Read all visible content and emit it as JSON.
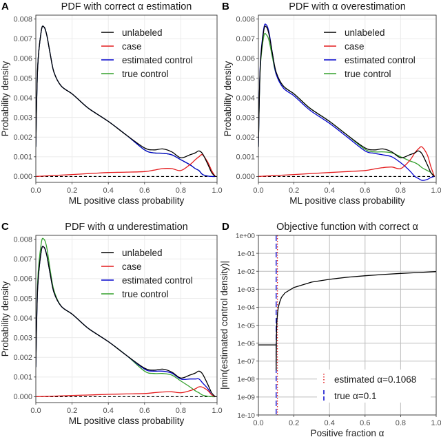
{
  "colors": {
    "unlabeled": "#000000",
    "case": "#e41a1c",
    "estimated_control": "#0000cc",
    "true_control": "#33a02c"
  },
  "chart_data": [
    {
      "panel": "A",
      "type": "line",
      "title": "PDF with correct α estimation",
      "xlabel": "ML positive class probability",
      "ylabel": "Probability density",
      "xlim": [
        0,
        1
      ],
      "ylim": [
        -0.0003,
        0.0082
      ],
      "xticks": [
        "0.0",
        "0.2",
        "0.4",
        "0.6",
        "0.8",
        "1.0"
      ],
      "yticks": [
        "0.000",
        "0.001",
        "0.002",
        "0.003",
        "0.004",
        "0.005",
        "0.006",
        "0.007",
        "0.008"
      ],
      "legend": [
        "unlabeled",
        "case",
        "estimated control",
        "true control"
      ],
      "series": [
        {
          "name": "unlabeled",
          "x": [
            0,
            0.01,
            0.03,
            0.045,
            0.06,
            0.08,
            0.1,
            0.14,
            0.2,
            0.26,
            0.3,
            0.4,
            0.5,
            0.6,
            0.65,
            0.7,
            0.75,
            0.8,
            0.85,
            0.88,
            0.9,
            0.92,
            0.95,
            0.97,
            0.99
          ],
          "y": [
            0.0015,
            0.0055,
            0.0074,
            0.0076,
            0.0072,
            0.0062,
            0.0053,
            0.0046,
            0.0042,
            0.0037,
            0.0034,
            0.0028,
            0.0021,
            0.00145,
            0.00135,
            0.0014,
            0.00125,
            0.00095,
            0.0011,
            0.0012,
            0.0013,
            0.00115,
            0.0006,
            0.0002,
            0
          ]
        },
        {
          "name": "case",
          "x": [
            0,
            0.1,
            0.2,
            0.3,
            0.4,
            0.5,
            0.6,
            0.65,
            0.7,
            0.75,
            0.8,
            0.85,
            0.88,
            0.9,
            0.92,
            0.95,
            0.97,
            0.99
          ],
          "y": [
            0,
            5e-05,
            0.0001,
            0.00015,
            0.0002,
            0.00022,
            0.00025,
            0.00032,
            0.0004,
            0.0004,
            0.0003,
            0.0006,
            0.00085,
            0.001,
            0.0011,
            0.0007,
            0.0003,
            0
          ]
        },
        {
          "name": "estimated control",
          "x": [
            0,
            0.01,
            0.03,
            0.045,
            0.06,
            0.08,
            0.1,
            0.14,
            0.2,
            0.26,
            0.3,
            0.4,
            0.5,
            0.6,
            0.65,
            0.7,
            0.75,
            0.8,
            0.85,
            0.88,
            0.9,
            0.92,
            0.95,
            0.97,
            0.99
          ],
          "y": [
            0.0015,
            0.0055,
            0.0074,
            0.0076,
            0.0072,
            0.0062,
            0.0053,
            0.0046,
            0.0042,
            0.0037,
            0.0034,
            0.0028,
            0.0021,
            0.00135,
            0.0012,
            0.00118,
            0.0011,
            0.00085,
            0.0006,
            0.0004,
            0.0003,
            0.0001,
            2e-05,
            0,
            0
          ]
        },
        {
          "name": "true control",
          "x": [
            0,
            0.01,
            0.03,
            0.045,
            0.06,
            0.08,
            0.1,
            0.14,
            0.2,
            0.26,
            0.3,
            0.4,
            0.5,
            0.6,
            0.65,
            0.7,
            0.75,
            0.8,
            0.85,
            0.88,
            0.9,
            0.92,
            0.95,
            0.97,
            0.99
          ],
          "y": [
            0.0015,
            0.0055,
            0.0074,
            0.0076,
            0.0072,
            0.0062,
            0.0053,
            0.0046,
            0.0042,
            0.0037,
            0.0034,
            0.0028,
            0.0021,
            0.00135,
            0.0012,
            0.00118,
            0.0011,
            0.00085,
            0.0006,
            0.0004,
            0.0003,
            0.0001,
            2e-05,
            0,
            0
          ]
        }
      ]
    },
    {
      "panel": "B",
      "type": "line",
      "title": "PDF with α overestimation",
      "xlabel": "ML positive class probability",
      "ylabel": "Probability density",
      "xlim": [
        0,
        1
      ],
      "ylim": [
        -0.0003,
        0.0082
      ],
      "xticks": [
        "0.0",
        "0.2",
        "0.4",
        "0.6",
        "0.8",
        "1.0"
      ],
      "yticks": [
        "0.000",
        "0.001",
        "0.002",
        "0.003",
        "0.004",
        "0.005",
        "0.006",
        "0.007",
        "0.008"
      ],
      "legend": [
        "unlabeled",
        "case",
        "estimated control",
        "true control"
      ],
      "series": [
        {
          "name": "unlabeled",
          "x": [
            0,
            0.01,
            0.03,
            0.045,
            0.06,
            0.08,
            0.1,
            0.14,
            0.2,
            0.26,
            0.3,
            0.4,
            0.5,
            0.6,
            0.65,
            0.7,
            0.75,
            0.8,
            0.85,
            0.88,
            0.9,
            0.92,
            0.95,
            0.97,
            0.99
          ],
          "y": [
            0.0015,
            0.0055,
            0.0074,
            0.0076,
            0.0072,
            0.0062,
            0.0053,
            0.0046,
            0.0042,
            0.0037,
            0.0034,
            0.0028,
            0.0021,
            0.00145,
            0.00135,
            0.0014,
            0.00125,
            0.00095,
            0.0011,
            0.0012,
            0.0013,
            0.00115,
            0.0006,
            0.0002,
            0
          ]
        },
        {
          "name": "case",
          "x": [
            0,
            0.1,
            0.2,
            0.3,
            0.4,
            0.5,
            0.6,
            0.65,
            0.7,
            0.75,
            0.8,
            0.85,
            0.88,
            0.9,
            0.92,
            0.95,
            0.97,
            0.99
          ],
          "y": [
            0,
            5e-05,
            0.0001,
            0.00015,
            0.0002,
            0.00025,
            0.0003,
            0.00038,
            0.00045,
            0.00048,
            0.0004,
            0.0008,
            0.0012,
            0.0014,
            0.0015,
            0.0011,
            0.0005,
            0
          ]
        },
        {
          "name": "estimated control",
          "x": [
            0,
            0.01,
            0.03,
            0.045,
            0.06,
            0.08,
            0.1,
            0.14,
            0.2,
            0.26,
            0.3,
            0.4,
            0.5,
            0.6,
            0.65,
            0.7,
            0.75,
            0.8,
            0.85,
            0.88,
            0.9,
            0.92,
            0.95,
            0.97,
            0.99
          ],
          "y": [
            0.0015,
            0.0056,
            0.0075,
            0.0077,
            0.0073,
            0.0062,
            0.0052,
            0.0045,
            0.0041,
            0.0036,
            0.0033,
            0.0027,
            0.002,
            0.0013,
            0.00118,
            0.0011,
            0.001,
            0.0007,
            0.0003,
            0,
            -0.0001,
            -0.0002,
            -0.00015,
            -5e-05,
            0
          ]
        },
        {
          "name": "true control",
          "x": [
            0,
            0.01,
            0.03,
            0.045,
            0.06,
            0.08,
            0.1,
            0.14,
            0.2,
            0.26,
            0.3,
            0.4,
            0.5,
            0.6,
            0.65,
            0.7,
            0.75,
            0.8,
            0.85,
            0.88,
            0.9,
            0.92,
            0.95,
            0.97,
            0.99
          ],
          "y": [
            0.0015,
            0.0054,
            0.0071,
            0.0072,
            0.0069,
            0.006,
            0.0052,
            0.0046,
            0.0042,
            0.0037,
            0.0034,
            0.0028,
            0.0021,
            0.00138,
            0.00125,
            0.00125,
            0.0012,
            0.001,
            0.0008,
            0.0007,
            0.0006,
            0.00045,
            0.0003,
            0.0002,
            0
          ]
        }
      ]
    },
    {
      "panel": "C",
      "type": "line",
      "title": "PDF with α underestimation",
      "xlabel": "ML positive class probability",
      "ylabel": "Probability density",
      "xlim": [
        0,
        1
      ],
      "ylim": [
        -0.0003,
        0.0082
      ],
      "xticks": [
        "0.0",
        "0.2",
        "0.4",
        "0.6",
        "0.8",
        "1.0"
      ],
      "yticks": [
        "0.000",
        "0.001",
        "0.002",
        "0.003",
        "0.004",
        "0.005",
        "0.006",
        "0.007",
        "0.008"
      ],
      "legend": [
        "unlabeled",
        "case",
        "estimated control",
        "true control"
      ],
      "series": [
        {
          "name": "unlabeled",
          "x": [
            0,
            0.01,
            0.03,
            0.045,
            0.06,
            0.08,
            0.1,
            0.14,
            0.2,
            0.26,
            0.3,
            0.4,
            0.5,
            0.6,
            0.65,
            0.7,
            0.75,
            0.8,
            0.85,
            0.88,
            0.9,
            0.92,
            0.95,
            0.97,
            0.99
          ],
          "y": [
            0.0015,
            0.0055,
            0.0074,
            0.0076,
            0.0072,
            0.0062,
            0.0053,
            0.0046,
            0.0042,
            0.0037,
            0.0034,
            0.0028,
            0.0021,
            0.00145,
            0.00135,
            0.0014,
            0.00125,
            0.00095,
            0.0011,
            0.0012,
            0.0013,
            0.00115,
            0.0006,
            0.0002,
            0
          ]
        },
        {
          "name": "case",
          "x": [
            0,
            0.1,
            0.2,
            0.3,
            0.4,
            0.5,
            0.6,
            0.65,
            0.7,
            0.75,
            0.8,
            0.85,
            0.88,
            0.9,
            0.92,
            0.95,
            0.97,
            0.99
          ],
          "y": [
            0,
            3e-05,
            6e-05,
            9e-05,
            0.00012,
            0.00014,
            0.00016,
            0.0002,
            0.00024,
            0.00025,
            0.0002,
            0.0003,
            0.0004,
            0.0005,
            0.00048,
            0.0003,
            0.0001,
            0
          ]
        },
        {
          "name": "estimated control",
          "x": [
            0,
            0.01,
            0.03,
            0.045,
            0.06,
            0.08,
            0.1,
            0.14,
            0.2,
            0.26,
            0.3,
            0.4,
            0.5,
            0.6,
            0.65,
            0.7,
            0.75,
            0.8,
            0.85,
            0.88,
            0.9,
            0.92,
            0.95,
            0.97,
            0.99
          ],
          "y": [
            0.0015,
            0.0055,
            0.0074,
            0.0076,
            0.0072,
            0.0062,
            0.0053,
            0.0046,
            0.0042,
            0.0037,
            0.0034,
            0.0028,
            0.0021,
            0.0014,
            0.0013,
            0.0013,
            0.0012,
            0.0009,
            0.0009,
            0.0009,
            0.0009,
            0.0007,
            0.0004,
            0.0001,
            0
          ]
        },
        {
          "name": "true control",
          "x": [
            0,
            0.01,
            0.03,
            0.045,
            0.06,
            0.08,
            0.1,
            0.14,
            0.2,
            0.26,
            0.3,
            0.4,
            0.5,
            0.6,
            0.65,
            0.7,
            0.75,
            0.8,
            0.85,
            0.88,
            0.9,
            0.92,
            0.95,
            0.97,
            0.99
          ],
          "y": [
            0.0015,
            0.0058,
            0.0078,
            0.008,
            0.0076,
            0.0064,
            0.0054,
            0.0046,
            0.0042,
            0.0037,
            0.0034,
            0.0028,
            0.0021,
            0.0013,
            0.00118,
            0.00118,
            0.0011,
            0.0008,
            0.0005,
            0.0003,
            0.0002,
            8e-05,
            2e-05,
            0,
            0
          ]
        }
      ]
    },
    {
      "panel": "D",
      "type": "line",
      "title": "Objective function with correct α",
      "xlabel": "Positive fraction α",
      "ylabel": "|min(estimated control density)|",
      "xlim": [
        0,
        1
      ],
      "ylim": [
        -10,
        0
      ],
      "yscale": "log10",
      "xticks": [
        "0.0",
        "0.2",
        "0.4",
        "0.6",
        "0.8",
        "1.0"
      ],
      "yticks": [
        "1e-10",
        "1e-09",
        "1e-08",
        "1e-07",
        "1e-06",
        "1e-05",
        "1e-04",
        "1e-03",
        "1e-02",
        "1e-01",
        "1e+00"
      ],
      "legend": [
        "estimated α=0.1068",
        "true α=0.1"
      ],
      "estimated_alpha": 0.1068,
      "true_alpha": 0.1,
      "series": [
        {
          "name": "objective",
          "x": [
            0,
            0.1,
            0.1,
            0.101,
            0.102,
            0.104,
            0.108,
            0.112,
            0.12,
            0.13,
            0.15,
            0.2,
            0.3,
            0.4,
            0.5,
            0.6,
            0.7,
            0.8,
            0.9,
            1.0
          ],
          "y": [
            -6.1,
            -6.1,
            -7.5,
            -6.0,
            -5.4,
            -4.8,
            -4.3,
            -4.0,
            -3.7,
            -3.45,
            -3.2,
            -2.9,
            -2.6,
            -2.45,
            -2.33,
            -2.25,
            -2.18,
            -2.12,
            -2.07,
            -2.02
          ]
        }
      ]
    }
  ]
}
